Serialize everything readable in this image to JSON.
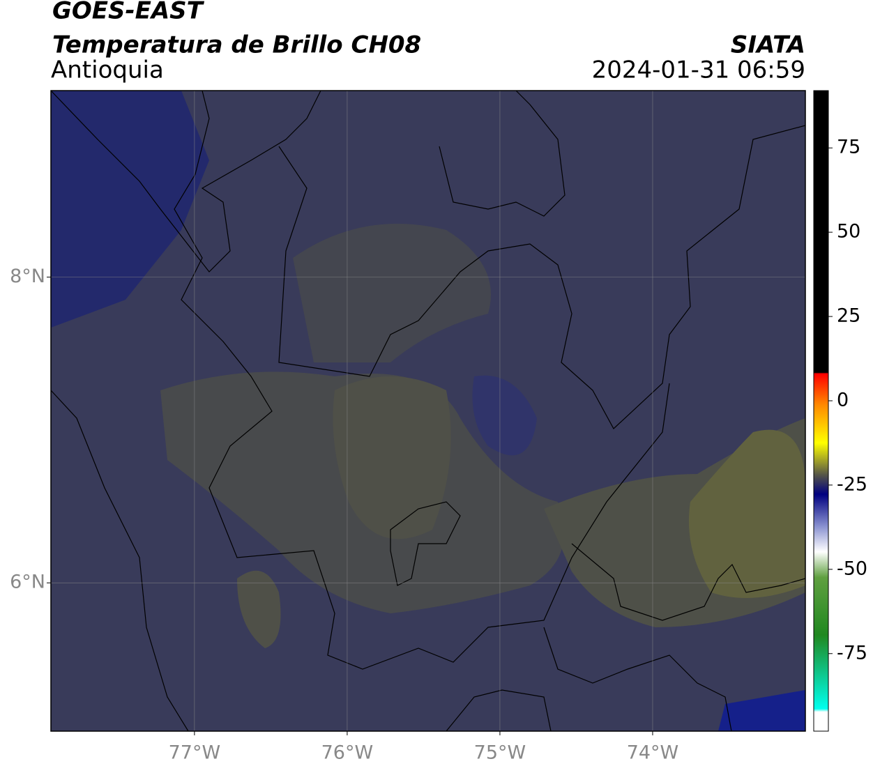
{
  "header": {
    "title": "GOES-EAST",
    "subtitle": "Temperatura de Brillo CH08",
    "region": "Antioquia",
    "source": "SIATA",
    "timestamp": "2024-01-31 06:59"
  },
  "map": {
    "xlim": [
      -77.94,
      -73.0
    ],
    "ylim": [
      5.03,
      9.22
    ],
    "xticks": [
      {
        "value": -77,
        "label": "77°W"
      },
      {
        "value": -76,
        "label": "76°W"
      },
      {
        "value": -75,
        "label": "75°W"
      },
      {
        "value": -74,
        "label": "74°W"
      }
    ],
    "yticks": [
      {
        "value": 8,
        "label": "8°N"
      },
      {
        "value": 6,
        "label": "6°N"
      }
    ],
    "grid": true
  },
  "colorbar": {
    "clim": [
      -98,
      92
    ],
    "ticks": [
      75,
      50,
      25,
      0,
      -25,
      -50,
      -75
    ]
  }
}
